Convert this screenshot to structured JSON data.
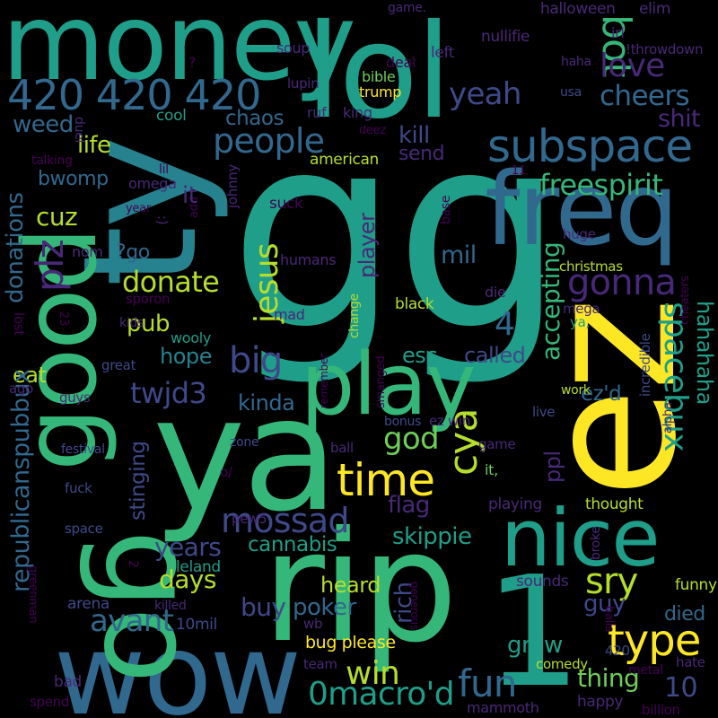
{
  "palette": {
    "background": "#000000",
    "yellow": "#fde725",
    "lime": "#b5de2b",
    "green": "#6ece58",
    "sea": "#35b779",
    "teal": "#1f9e89",
    "cyan": "#26828e",
    "blue": "#31688e",
    "indigo": "#3e4989",
    "violet": "#482878",
    "purple": "#440154"
  },
  "words": [
    {
      "text": "gg",
      "color": "teal"
    },
    {
      "text": "money",
      "color": "teal"
    },
    {
      "text": "lol",
      "color": "teal"
    },
    {
      "text": "ty",
      "color": "cyan"
    },
    {
      "text": "freq",
      "color": "blue"
    },
    {
      "text": "ez",
      "color": "yellow"
    },
    {
      "text": "ya",
      "color": "sea"
    },
    {
      "text": "good",
      "color": "sea"
    },
    {
      "text": "nice",
      "color": "teal"
    },
    {
      "text": "rip",
      "color": "sea"
    },
    {
      "text": "wow",
      "color": "blue"
    },
    {
      "text": "go",
      "color": "sea"
    },
    {
      "text": "1",
      "color": "teal"
    },
    {
      "text": "play",
      "color": "sea"
    },
    {
      "text": "420 420 420",
      "color": "blue"
    },
    {
      "text": "subspace",
      "color": "blue"
    },
    {
      "text": "yeah",
      "color": "indigo"
    },
    {
      "text": "bot",
      "color": "sea"
    },
    {
      "text": "love",
      "color": "violet"
    },
    {
      "text": "people",
      "color": "blue"
    },
    {
      "text": "cheers",
      "color": "blue"
    },
    {
      "text": "shit",
      "color": "violet"
    },
    {
      "text": "weed",
      "color": "blue"
    },
    {
      "text": "chaos",
      "color": "blue"
    },
    {
      "text": "kill",
      "color": "indigo"
    },
    {
      "text": "life",
      "color": "lime"
    },
    {
      "text": "send",
      "color": "violet"
    },
    {
      "text": "freespirit",
      "color": "sea"
    },
    {
      "text": "gonna",
      "color": "violet"
    },
    {
      "text": "plz",
      "color": "violet"
    },
    {
      "text": "jesus",
      "color": "lime"
    },
    {
      "text": "cuz",
      "color": "lime"
    },
    {
      "text": "bwomp",
      "color": "blue"
    },
    {
      "text": "donations",
      "color": "blue"
    },
    {
      "text": "donate",
      "color": "lime"
    },
    {
      "text": "?go",
      "color": "blue"
    },
    {
      "text": "mil",
      "color": "blue"
    },
    {
      "text": "accepting",
      "color": "sea"
    },
    {
      "text": "spacebux",
      "color": "teal"
    },
    {
      "text": "hahahaha",
      "color": "teal"
    },
    {
      "text": "big",
      "color": "indigo"
    },
    {
      "text": "pub",
      "color": "lime"
    },
    {
      "text": "4",
      "color": "blue"
    },
    {
      "text": "player",
      "color": "violet"
    },
    {
      "text": "twjd3",
      "color": "indigo"
    },
    {
      "text": "hope",
      "color": "cyan"
    },
    {
      "text": "called",
      "color": "indigo"
    },
    {
      "text": "esc",
      "color": "teal"
    },
    {
      "text": "kinda",
      "color": "blue"
    },
    {
      "text": "eat",
      "color": "lime"
    },
    {
      "text": "god",
      "color": "green"
    },
    {
      "text": "cya",
      "color": "lime"
    },
    {
      "text": "ez'd",
      "color": "blue"
    },
    {
      "text": "type",
      "color": "yellow"
    },
    {
      "text": "time",
      "color": "yellow"
    },
    {
      "text": "republicanspubbux",
      "color": "blue"
    },
    {
      "text": "stinging",
      "color": "indigo"
    },
    {
      "text": "mossad",
      "color": "indigo"
    },
    {
      "text": "ppl",
      "color": "violet"
    },
    {
      "text": "flag",
      "color": "violet"
    },
    {
      "text": "skippie",
      "color": "teal"
    },
    {
      "text": "years",
      "color": "indigo"
    },
    {
      "text": "cannabis",
      "color": "teal"
    },
    {
      "text": "days",
      "color": "lime"
    },
    {
      "text": "avant",
      "color": "blue"
    },
    {
      "text": "sry",
      "color": "lime"
    },
    {
      "text": "guy",
      "color": "indigo"
    },
    {
      "text": "died",
      "color": "blue"
    },
    {
      "text": "heard",
      "color": "lime"
    },
    {
      "text": "poker",
      "color": "blue"
    },
    {
      "text": "buy",
      "color": "indigo"
    },
    {
      "text": "rich",
      "color": "indigo"
    },
    {
      "text": "win",
      "color": "lime"
    },
    {
      "text": "fun",
      "color": "blue"
    },
    {
      "text": "grow",
      "color": "teal"
    },
    {
      "text": "thing",
      "color": "green"
    },
    {
      "text": "10",
      "color": "indigo"
    },
    {
      "text": "0macro'd",
      "color": "teal"
    },
    {
      "text": "bug please",
      "color": "yellow"
    },
    {
      "text": "halloween",
      "color": "violet"
    },
    {
      "text": "elim",
      "color": "violet"
    },
    {
      "text": "game.",
      "color": "violet"
    },
    {
      "text": "nullifie",
      "color": "violet"
    },
    {
      "text": "irl",
      "color": "violet"
    },
    {
      "text": "!throwdown",
      "color": "violet"
    },
    {
      "text": "soup",
      "color": "violet"
    },
    {
      "text": "left",
      "color": "violet"
    },
    {
      "text": "deal",
      "color": "purple"
    },
    {
      "text": "haha",
      "color": "violet"
    },
    {
      "text": "lupin",
      "color": "violet"
    },
    {
      "text": "bible",
      "color": "green"
    },
    {
      "text": "trump",
      "color": "yellow"
    },
    {
      "text": "usa",
      "color": "indigo"
    },
    {
      "text": "cool",
      "color": "teal"
    },
    {
      "text": "ruf",
      "color": "violet"
    },
    {
      "text": "king",
      "color": "violet"
    },
    {
      "text": "deez",
      "color": "purple"
    },
    {
      "text": "duel",
      "color": "violet"
    },
    {
      "text": "talking",
      "color": "purple"
    },
    {
      "text": "american",
      "color": "lime"
    },
    {
      "text": "johnny",
      "color": "violet"
    },
    {
      "text": "omega",
      "color": "violet"
    },
    {
      "text": "lil",
      "color": "purple"
    },
    {
      "text": "year",
      "color": "purple"
    },
    {
      "text": "suck",
      "color": "purple"
    },
    {
      "text": "add",
      "color": "purple"
    },
    {
      "text": "base",
      "color": "purple"
    },
    {
      "text": "huge",
      "color": "violet"
    },
    {
      "text": "11",
      "color": "purple"
    },
    {
      "text": "nom",
      "color": "violet"
    },
    {
      "text": ":)",
      "color": "violet"
    },
    {
      "text": "it",
      "color": "violet"
    },
    {
      "text": "humans",
      "color": "violet"
    },
    {
      "text": "christmas",
      "color": "lime"
    },
    {
      "text": "sporon",
      "color": "purple"
    },
    {
      "text": "mad",
      "color": "violet"
    },
    {
      "text": "die",
      "color": "violet"
    },
    {
      "text": "change",
      "color": "lime"
    },
    {
      "text": "black",
      "color": "lime"
    },
    {
      "text": "mega",
      "color": "violet"
    },
    {
      "text": "23",
      "color": "purple"
    },
    {
      "text": "lost",
      "color": "purple"
    },
    {
      "text": "kids",
      "color": "violet"
    },
    {
      "text": "wooly",
      "color": "teal"
    },
    {
      "text": "great",
      "color": "indigo"
    },
    {
      "text": "remember",
      "color": "purple"
    },
    {
      "text": "smanged",
      "color": "purple"
    },
    {
      "text": "ya,",
      "color": "teal"
    },
    {
      "text": "cheaters",
      "color": "purple"
    },
    {
      "text": "incredible",
      "color": "indigo"
    },
    {
      "text": "ago",
      "color": "violet"
    },
    {
      "text": "guys",
      "color": "violet"
    },
    {
      "text": "work",
      "color": "lime"
    },
    {
      "text": "festival",
      "color": "indigo"
    },
    {
      "text": "zone",
      "color": "indigo"
    },
    {
      "text": "ball",
      "color": "violet"
    },
    {
      "text": "bonus",
      "color": "indigo"
    },
    {
      "text": "ez win",
      "color": "violet"
    },
    {
      "text": "live",
      "color": "indigo"
    },
    {
      "text": "game",
      "color": "violet"
    },
    {
      "text": "alpha",
      "color": "violet"
    },
    {
      "text": "fuck",
      "color": "indigo"
    },
    {
      "text": "o/",
      "color": "purple"
    },
    {
      "text": "-",
      "color": "purple"
    },
    {
      "text": "it,",
      "color": "green"
    },
    {
      "text": "playing",
      "color": "violet"
    },
    {
      "text": "thought",
      "color": "lime"
    },
    {
      "text": "broke",
      "color": "violet"
    },
    {
      "text": "space",
      "color": "indigo"
    },
    {
      "text": "pew5",
      "color": "violet"
    },
    {
      "text": "2",
      "color": "purple"
    },
    {
      "text": "leland",
      "color": "teal"
    },
    {
      "text": "sounds",
      "color": "violet"
    },
    {
      "text": "funny",
      "color": "lime"
    },
    {
      "text": "greenman",
      "color": "purple"
    },
    {
      "text": "arena",
      "color": "indigo"
    },
    {
      "text": "killed",
      "color": "violet"
    },
    {
      "text": "10mil",
      "color": "indigo"
    },
    {
      "text": "generous",
      "color": "purple"
    },
    {
      "text": "wb",
      "color": "violet"
    },
    {
      "text": "balls",
      "color": "purple"
    },
    {
      "text": "420",
      "color": "indigo"
    },
    {
      "text": "team",
      "color": "violet"
    },
    {
      "text": "comedy",
      "color": "lime"
    },
    {
      "text": "bad",
      "color": "violet"
    },
    {
      "text": "metal",
      "color": "purple"
    },
    {
      "text": "hate",
      "color": "violet"
    },
    {
      "text": "spend",
      "color": "purple"
    },
    {
      "text": "happy",
      "color": "violet"
    },
    {
      "text": "mammoth",
      "color": "violet"
    },
    {
      "text": "billion",
      "color": "purple"
    },
    {
      "text": "?",
      "color": "purple"
    }
  ]
}
